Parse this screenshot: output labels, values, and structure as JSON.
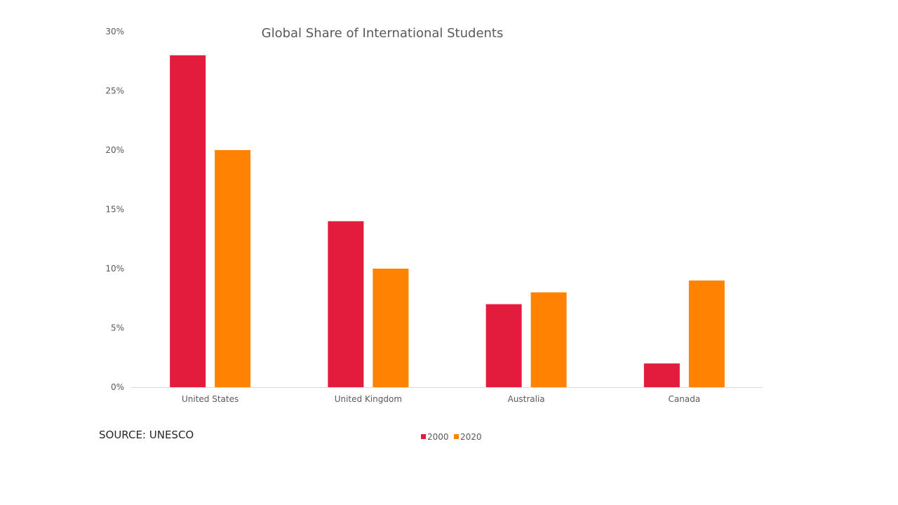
{
  "chart_data": {
    "type": "bar",
    "title": "Global Share of International Students",
    "categories": [
      "United States",
      "United Kingdom",
      "Australia",
      "Canada"
    ],
    "series": [
      {
        "name": "2000",
        "values": [
          28,
          14,
          7,
          2
        ],
        "color": "#E31C3D"
      },
      {
        "name": "2020",
        "values": [
          20,
          10,
          8,
          9
        ],
        "color": "#FF8200"
      }
    ],
    "y_ticks": [
      "0%",
      "5%",
      "10%",
      "15%",
      "20%",
      "25%",
      "30%"
    ],
    "y_tick_values": [
      0,
      5,
      10,
      15,
      20,
      25,
      30
    ],
    "ylim": [
      0,
      30
    ],
    "grid": false,
    "legend_position": "bottom"
  },
  "source": "SOURCE: UNESCO"
}
